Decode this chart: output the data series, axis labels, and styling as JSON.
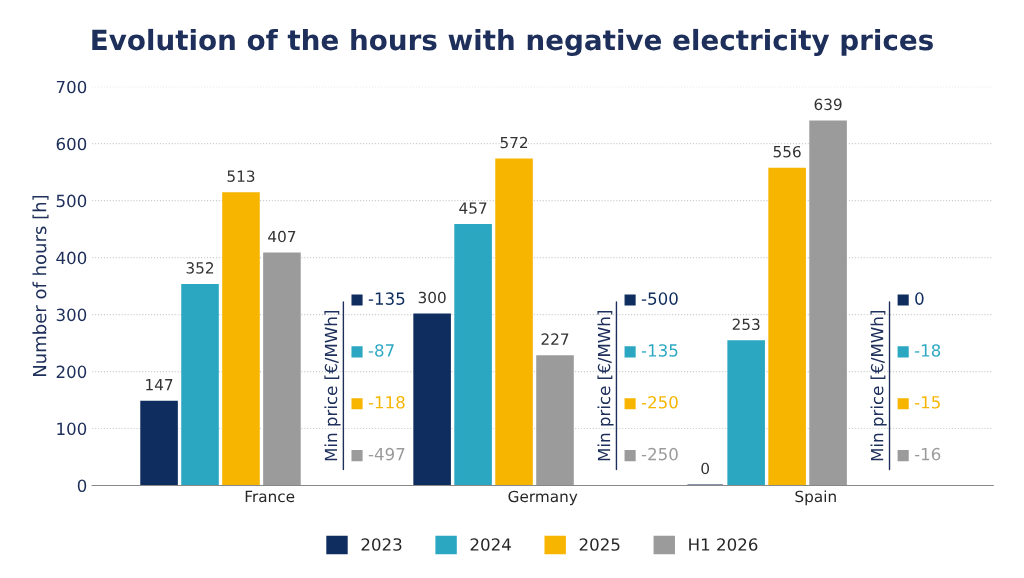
{
  "chart_data": {
    "type": "bar",
    "title": "Evolution of the hours with negative electricity prices",
    "ylabel": "Number of hours [h]",
    "categories": [
      "France",
      "Germany",
      "Spain"
    ],
    "series": [
      {
        "name": "2023",
        "color": "#0f2d5e",
        "values": [
          147,
          300,
          0
        ]
      },
      {
        "name": "2024",
        "color": "#2ba7c2",
        "values": [
          352,
          457,
          253
        ]
      },
      {
        "name": "2025",
        "color": "#f7b500",
        "values": [
          513,
          572,
          556
        ]
      },
      {
        "name": "H1 2026",
        "color": "#9b9b9b",
        "values": [
          407,
          227,
          639
        ]
      }
    ],
    "ylim": [
      0,
      700
    ],
    "yticks": [
      0,
      100,
      200,
      300,
      400,
      500,
      600,
      700
    ],
    "grid": "y",
    "legend": "bottom",
    "data_labels": true,
    "annotations": [
      "Min price [€/MWh]",
      "-135",
      "-87",
      "-118",
      "-497",
      "-500",
      "-135",
      "-250",
      "-250",
      "0",
      "-18",
      "-15",
      "-16"
    ]
  }
}
